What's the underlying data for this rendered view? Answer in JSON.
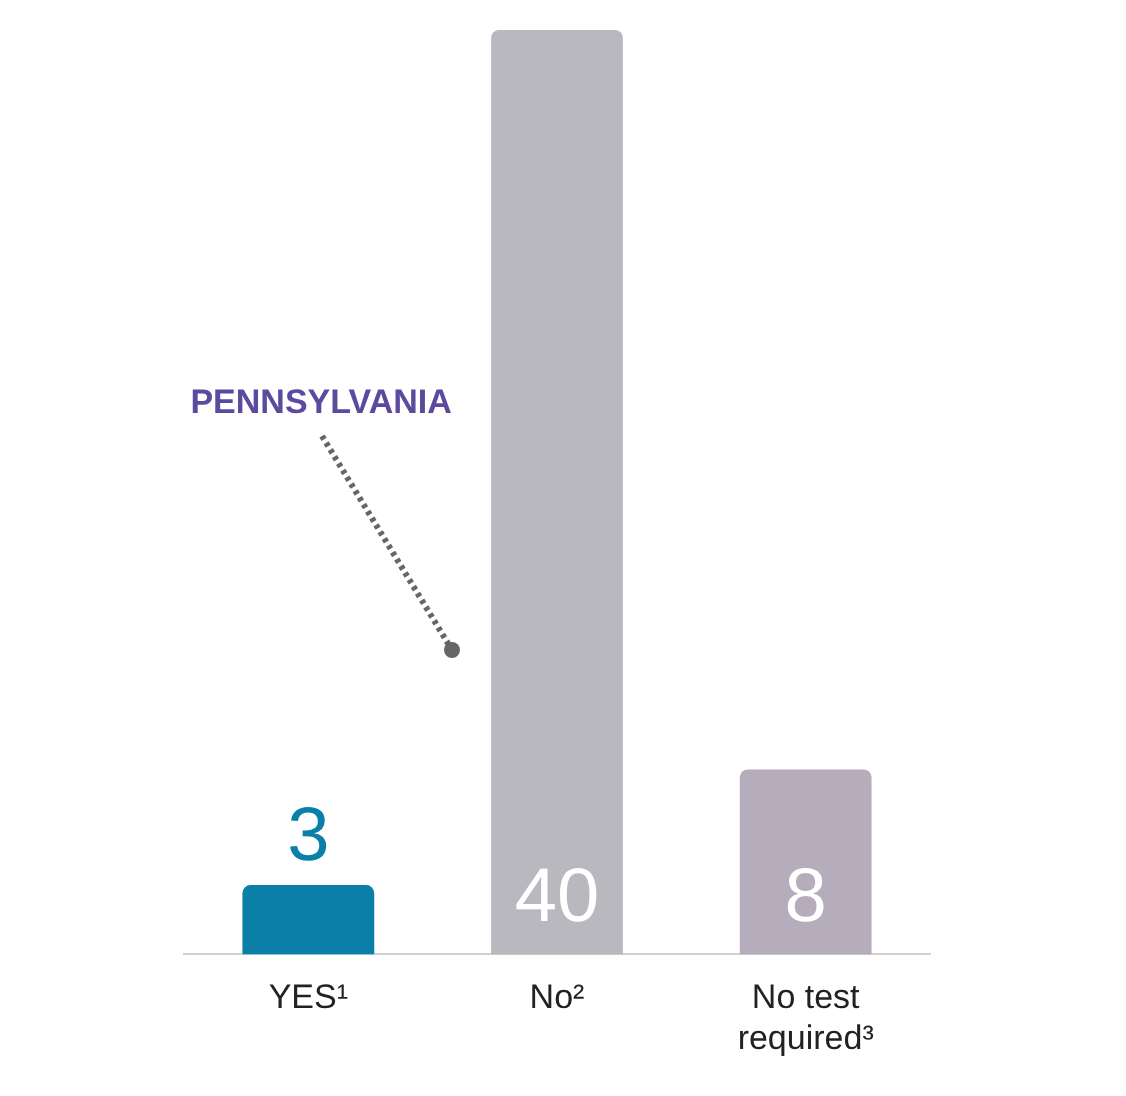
{
  "chart_data": {
    "type": "bar",
    "categories": [
      "YES¹",
      "No²",
      "No test required³"
    ],
    "values": [
      3,
      40,
      8
    ],
    "colors": [
      "#0a7fa8",
      "#b9b8bf",
      "#b5adbb"
    ],
    "data_labels": true,
    "grid": false,
    "legend": false,
    "annotations": [
      "PENNSYLVANIA"
    ]
  }
}
